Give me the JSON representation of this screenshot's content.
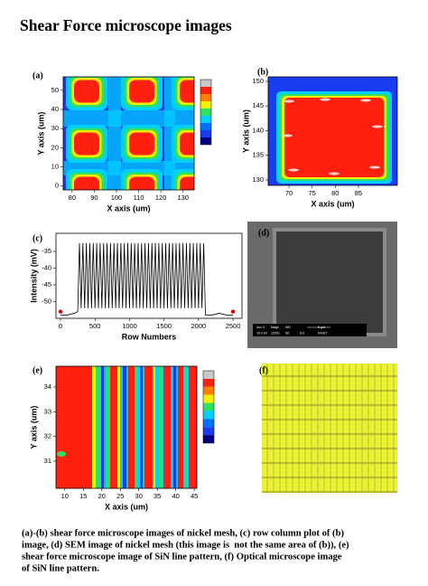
{
  "title": "Shear Force microscope images",
  "panels": [
    {
      "label": "(a)",
      "chart": {
        "type": "heatmap",
        "xlabel": "X axis (um)",
        "ylabel": "Y axis (um)",
        "xlim": [
          76,
          135
        ],
        "ylim": [
          -2,
          57
        ],
        "xticks": [
          80,
          90,
          100,
          110,
          120,
          130
        ],
        "yticks": [
          0,
          10,
          20,
          30,
          40,
          50
        ]
      }
    },
    {
      "label": "(b)",
      "chart": {
        "type": "heatmap",
        "xlabel": "X axis (um)",
        "ylabel": "Y axis (um)",
        "xlim": [
          65.5,
          93.4
        ],
        "ylim": [
          128.9,
          150.9
        ],
        "xticks": [
          70,
          75,
          80,
          85
        ],
        "yticks": [
          130,
          135,
          140,
          145,
          150
        ]
      }
    },
    {
      "label": "(c)",
      "chart": {
        "type": "line",
        "xlabel": "Row Numbers",
        "ylabel": "Intensity (mV)",
        "xlim": [
          -65,
          2630
        ],
        "ylim": [
          -55,
          -29.6
        ],
        "xticks": [
          0,
          500,
          1000,
          1500,
          2000,
          2500
        ],
        "yticks": [
          -50,
          -45,
          -40,
          -35
        ],
        "series": [
          {
            "color": "#000000",
            "x": [
              0,
              100,
              200,
              250,
              275,
              300,
              325,
              350,
              375,
              400,
              425,
              450,
              475,
              500,
              525,
              550,
              575,
              600,
              625,
              650,
              675,
              700,
              725,
              750,
              775,
              800,
              825,
              850,
              875,
              900,
              925,
              950,
              975,
              1000,
              1025,
              1050,
              1075,
              1100,
              1125,
              1150,
              1175,
              1200,
              1225,
              1250,
              1275,
              1300,
              1325,
              1350,
              1375,
              1400,
              1425,
              1450,
              1475,
              1500,
              1525,
              1550,
              1575,
              1600,
              1625,
              1650,
              1675,
              1700,
              1725,
              1750,
              1775,
              1800,
              1825,
              1850,
              1875,
              1900,
              1925,
              1950,
              1975,
              2000,
              2025,
              2050,
              2075,
              2100,
              2200,
              2300,
              2400,
              2500
            ],
            "values": [
              -54,
              -54,
              -53.5,
              -53,
              -32.5,
              -52,
              -32.5,
              -52,
              -32.5,
              -52,
              -32.5,
              -52,
              -32.5,
              -52,
              -32.5,
              -52,
              -32.5,
              -52,
              -32.5,
              -52,
              -32.5,
              -52,
              -32.5,
              -52,
              -32.5,
              -52,
              -32.5,
              -52,
              -32.5,
              -52,
              -32.5,
              -52,
              -32.5,
              -52,
              -32.5,
              -52,
              -32.5,
              -52,
              -32.5,
              -52,
              -32.5,
              -52,
              -32.5,
              -52,
              -32.5,
              -52,
              -32.5,
              -52,
              -32.5,
              -52,
              -32.5,
              -52,
              -32.5,
              -52,
              -32.5,
              -52,
              -32.5,
              -52,
              -32.5,
              -52,
              -32.5,
              -52,
              -32.5,
              -52,
              -32.5,
              -52,
              -32.5,
              -52,
              -32.5,
              -52,
              -32.5,
              -52,
              -32.5,
              -52,
              -32.5,
              -52,
              -32.5,
              -54,
              -54,
              -53.5,
              -54,
              -54
            ]
          }
        ],
        "markers": {
          "color": "#e00000",
          "x": [
            0,
            2500
          ],
          "values": [
            -53,
            -53
          ]
        }
      }
    },
    {
      "label": "(d)",
      "sem_info": [
        "Acc.V",
        "Magn",
        "WD",
        "5 µm",
        "10.0 kV",
        "1200x",
        "SE",
        "8.6",
        "KAIST"
      ]
    },
    {
      "label": "(e)",
      "chart": {
        "type": "heatmap",
        "xlabel": "X axis (um)",
        "ylabel": "Y axis (um)",
        "xlim": [
          7.6,
          45.7
        ],
        "ylim": [
          29.9,
          34.84
        ],
        "xticks": [
          10,
          15,
          20,
          25,
          30,
          35,
          40,
          45
        ],
        "yticks": [
          31,
          32,
          33,
          34
        ]
      }
    },
    {
      "label": "(f)"
    }
  ],
  "caption": [
    "(a)-(b) shear force microscope images of nickel mesh, (c) row column plot of (b)",
    "image, (d) SEM image of nickel mesh (this image is  not the same area of (b)), (e)",
    "shear force microscope image of SiN line pattern, (f) Optical microscope image",
    "of SiN line pattern."
  ]
}
